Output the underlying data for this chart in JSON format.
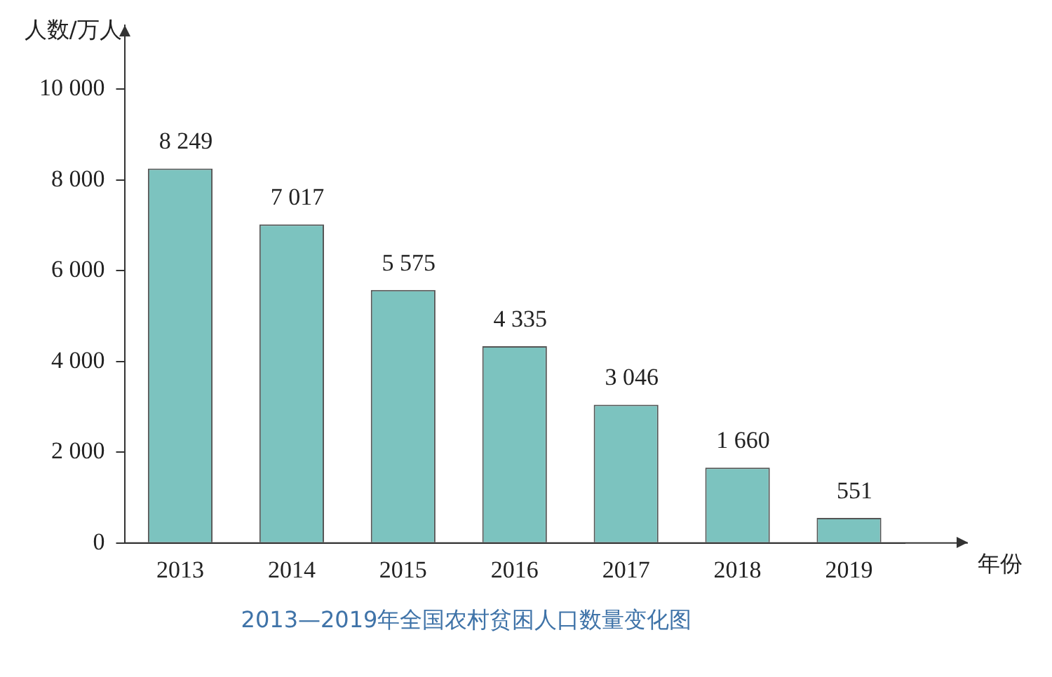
{
  "chart_data": {
    "type": "bar",
    "title": "2013—2019年全国农村贫困人口数量变化图",
    "xlabel": "年份",
    "ylabel": "人数/万人",
    "categories": [
      "2013",
      "2014",
      "2015",
      "2016",
      "2017",
      "2018",
      "2019"
    ],
    "values": [
      8249,
      7017,
      5575,
      4335,
      3046,
      1660,
      551
    ],
    "value_labels": [
      "8 249",
      "7 017",
      "5 575",
      "4 335",
      "3 046",
      "1 660",
      "551"
    ],
    "color": "#7cc3bf",
    "ylim": [
      0,
      11400
    ],
    "yticks": [
      0,
      {
        "value": 2000,
        "label": "2 000"
      },
      {
        "value": 4000,
        "label": "4 000"
      },
      {
        "value": 6000,
        "label": "6 000"
      },
      {
        "value": 8000,
        "label": "8 000"
      },
      {
        "value": 10000,
        "label": "10 000"
      }
    ],
    "grid": false,
    "legend": false
  }
}
